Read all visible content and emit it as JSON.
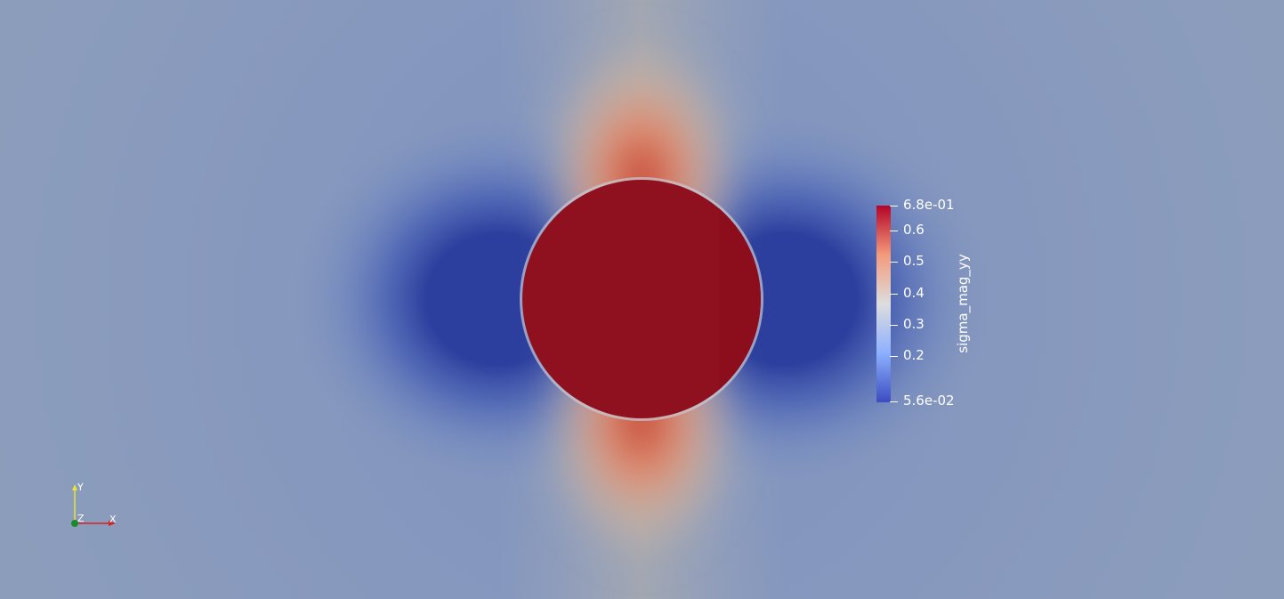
{
  "scalar_bar": {
    "title": "sigma_mag_yy",
    "ticks": [
      {
        "label": "6.8e-01",
        "value": 0.68
      },
      {
        "label": "0.6",
        "value": 0.6
      },
      {
        "label": "0.5",
        "value": 0.5
      },
      {
        "label": "0.4",
        "value": 0.4
      },
      {
        "label": "0.3",
        "value": 0.3
      },
      {
        "label": "0.2",
        "value": 0.2
      },
      {
        "label": "5.6e-02",
        "value": 0.056
      }
    ],
    "range": [
      0.056,
      0.68
    ],
    "colormap": [
      "#3b4cc0",
      "#8db0fe",
      "#dddddd",
      "#f49a7b",
      "#b40426"
    ]
  },
  "orientation_axes": {
    "x_label": "X",
    "y_label": "Y",
    "z_label": "Z",
    "x_color": "#d62020",
    "y_color": "#e8e23a",
    "z_color": "#1a8a2a"
  },
  "colors": {
    "background": "#8a9bbd",
    "inclusion": "#8f111f"
  }
}
